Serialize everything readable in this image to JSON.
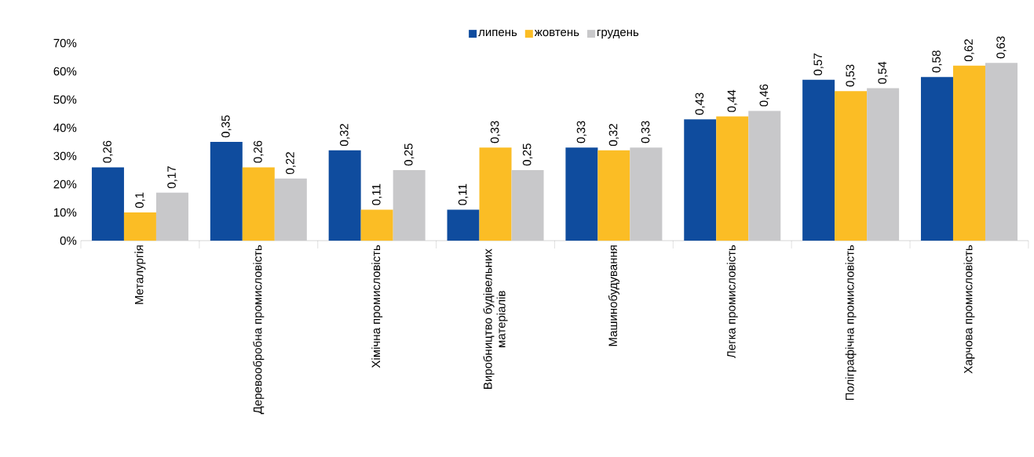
{
  "chart_data": {
    "type": "bar",
    "categories": [
      "Металургія",
      "Деревообробна промисловість",
      "Хімічна промисловість",
      "Виробництво будівельних матеріалів",
      "Машинобудування",
      "Легка промисловість",
      "Поліграфічна промисловість",
      "Харчова промисловість"
    ],
    "series": [
      {
        "name": "липень",
        "color": "#0f4c9e",
        "values": [
          0.26,
          0.35,
          0.32,
          0.11,
          0.33,
          0.43,
          0.57,
          0.58
        ],
        "value_labels": [
          "0,26",
          "0,35",
          "0,32",
          "0,11",
          "0,33",
          "0,43",
          "0,57",
          "0,58"
        ]
      },
      {
        "name": "жовтень",
        "color": "#fbbd25",
        "values": [
          0.1,
          0.26,
          0.11,
          0.33,
          0.32,
          0.44,
          0.53,
          0.62
        ],
        "value_labels": [
          "0,1",
          "0,26",
          "0,11",
          "0,33",
          "0,32",
          "0,44",
          "0,53",
          "0,62"
        ]
      },
      {
        "name": "грудень",
        "color": "#c8c8ca",
        "values": [
          0.17,
          0.22,
          0.25,
          0.25,
          0.33,
          0.46,
          0.54,
          0.63
        ],
        "value_labels": [
          "0,17",
          "0,22",
          "0,25",
          "0,25",
          "0,33",
          "0,46",
          "0,54",
          "0,63"
        ]
      }
    ],
    "ylim": [
      0,
      0.7
    ],
    "yticks": [
      {
        "value": 0,
        "label": "0%"
      },
      {
        "value": 0.1,
        "label": "10%"
      },
      {
        "value": 0.2,
        "label": "20%"
      },
      {
        "value": 0.3,
        "label": "30%"
      },
      {
        "value": 0.4,
        "label": "40%"
      },
      {
        "value": 0.5,
        "label": "50%"
      },
      {
        "value": 0.6,
        "label": "60%"
      },
      {
        "value": 0.7,
        "label": "70%"
      }
    ],
    "legend": "top"
  }
}
